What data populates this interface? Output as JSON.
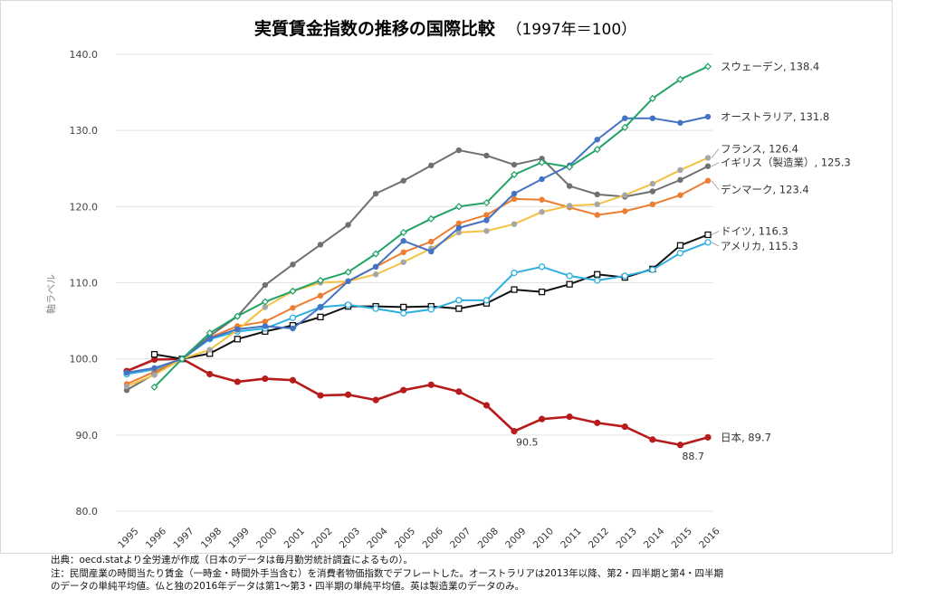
{
  "chart_data": {
    "type": "line",
    "title": "実質賃金指数の推移の国際比較",
    "subtitle": "（1997年＝100）",
    "xlabel": "",
    "ylabel": "軸ラベル",
    "ylim": [
      80,
      140
    ],
    "yticks": [
      "80.0",
      "90.0",
      "100.0",
      "110.0",
      "120.0",
      "130.0",
      "140.0"
    ],
    "categories": [
      "1995",
      "1996",
      "1997",
      "1998",
      "1999",
      "2000",
      "2001",
      "2002",
      "2003",
      "2004",
      "2005",
      "2006",
      "2007",
      "2008",
      "2009",
      "2010",
      "2011",
      "2012",
      "2013",
      "2014",
      "2015",
      "2016"
    ],
    "series": [
      {
        "name": "スウェーデン",
        "end_label": "スウェーデン, 138.4",
        "color": "#21a366",
        "marker": "diamond",
        "values": [
          null,
          96.3,
          100,
          103.4,
          105.6,
          107.5,
          108.9,
          110.3,
          111.4,
          113.8,
          116.6,
          118.4,
          120.0,
          120.5,
          124.2,
          125.8,
          125.2,
          127.5,
          130.4,
          134.2,
          136.7,
          138.4
        ]
      },
      {
        "name": "オーストラリア",
        "end_label": "オーストラリア, 131.8",
        "color": "#4472c4",
        "marker": "circle",
        "values": [
          98.2,
          98.8,
          100,
          102.7,
          103.9,
          104.3,
          104.0,
          106.8,
          110.2,
          112.1,
          115.5,
          114.1,
          117.2,
          118.2,
          121.7,
          123.6,
          125.4,
          128.8,
          131.6,
          131.6,
          131.0,
          131.8
        ]
      },
      {
        "name": "フランス",
        "end_label": "フランス, 126.4",
        "color": "#f4c242",
        "marker": "circle-gray",
        "values": [
          96.4,
          97.9,
          100,
          101.2,
          103.8,
          106.8,
          108.9,
          110.0,
          110.2,
          111.1,
          112.7,
          114.5,
          116.6,
          116.8,
          117.7,
          119.3,
          120.1,
          120.3,
          121.5,
          123.0,
          124.8,
          126.4
        ]
      },
      {
        "name": "イギリス（製造業）",
        "end_label": "イギリス（製造業）, 125.3",
        "color": "#707070",
        "marker": "circle",
        "values": [
          95.9,
          98.0,
          100,
          103.0,
          105.6,
          109.7,
          112.4,
          115.0,
          117.6,
          121.7,
          123.4,
          125.4,
          127.4,
          126.7,
          125.5,
          126.3,
          122.7,
          121.6,
          121.3,
          122.0,
          123.5,
          125.3
        ]
      },
      {
        "name": "デンマーク",
        "end_label": "デンマーク, 123.4",
        "color": "#ed7d31",
        "marker": "circle",
        "values": [
          96.7,
          98.3,
          100,
          102.8,
          104.3,
          104.9,
          106.7,
          108.3,
          110.2,
          112.1,
          114.0,
          115.4,
          117.8,
          118.9,
          121.0,
          120.9,
          119.9,
          118.9,
          119.4,
          120.3,
          121.5,
          123.4
        ]
      },
      {
        "name": "ドイツ",
        "end_label": "ドイツ, 116.3",
        "color": "#111111",
        "marker": "square",
        "values": [
          null,
          100.6,
          100,
          100.7,
          102.6,
          103.6,
          104.4,
          105.5,
          106.9,
          106.9,
          106.8,
          106.9,
          106.6,
          107.3,
          109.1,
          108.8,
          109.8,
          111.1,
          110.7,
          111.8,
          114.9,
          116.3
        ]
      },
      {
        "name": "アメリカ",
        "end_label": "アメリカ, 115.3",
        "color": "#2eaee0",
        "marker": "circle-open",
        "values": [
          98.0,
          98.6,
          100,
          102.6,
          103.6,
          104.0,
          105.4,
          106.8,
          107.1,
          106.6,
          106.0,
          106.5,
          107.7,
          107.7,
          111.3,
          112.1,
          110.9,
          110.3,
          110.9,
          111.7,
          113.9,
          115.3
        ]
      },
      {
        "name": "日本",
        "end_label": "日本, 89.7",
        "color": "#b71c1c",
        "marker": "circle",
        "values": [
          98.4,
          99.9,
          100,
          98.0,
          97.0,
          97.4,
          97.2,
          95.2,
          95.3,
          94.6,
          95.9,
          96.6,
          95.7,
          93.9,
          90.5,
          92.1,
          92.4,
          91.6,
          91.1,
          89.4,
          88.7,
          89.7
        ]
      }
    ],
    "annotations": [
      {
        "text": "90.5",
        "category": "2009",
        "value": 90.5
      },
      {
        "text": "88.7",
        "category": "2015",
        "value": 88.7
      }
    ]
  },
  "notes": {
    "source": "出典：oecd.statより全労連が作成（日本のデータは毎月勤労統計調査によるもの）。",
    "note_line1": "注：民間産業の時間当たり賃金（一時金・時間外手当含む）を消費者物価指数でデフレートした。オーストラリアは2013年以降、第2・四半期と第4・四半期",
    "note_line2": "のデータの単純平均値。仏と独の2016年データは第1～第3・四半期の単純平均値。英は製造業のデータのみ。"
  }
}
